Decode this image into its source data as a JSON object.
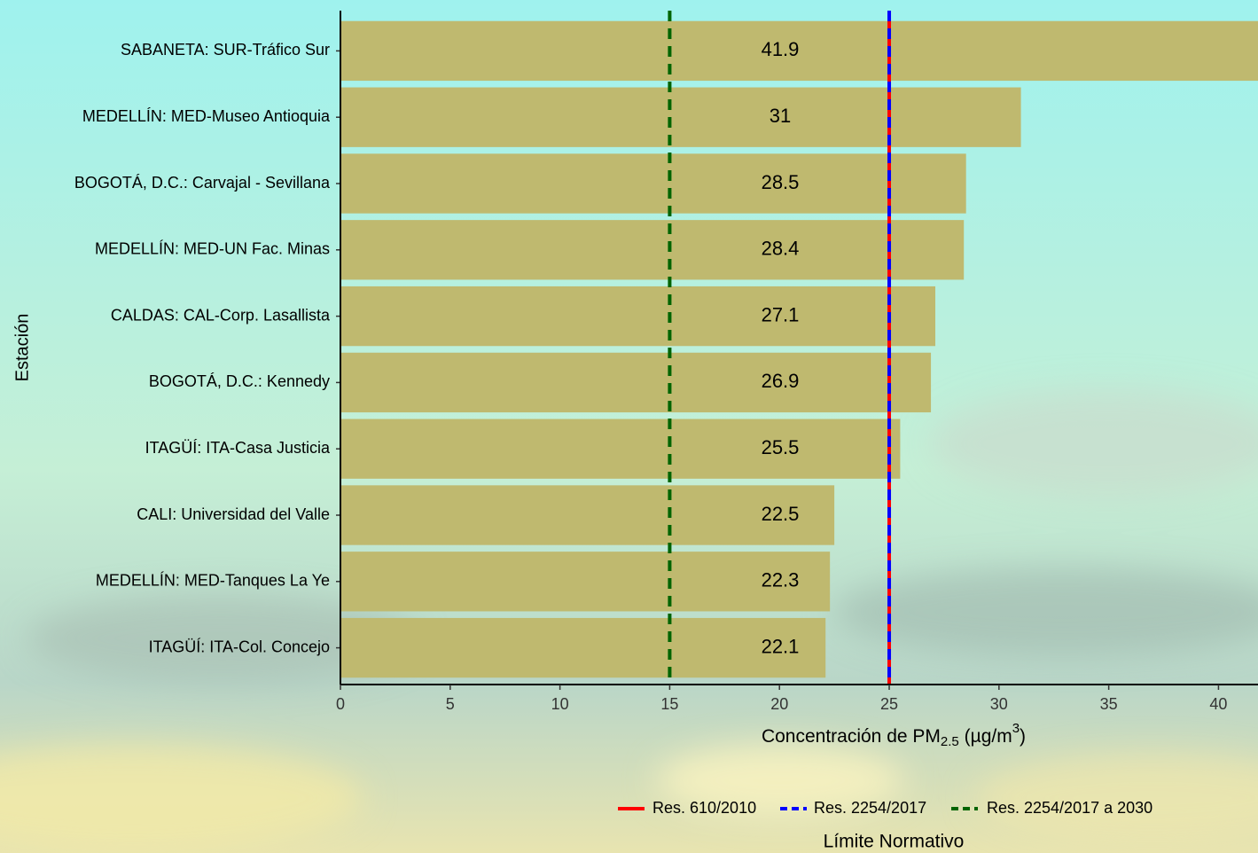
{
  "chart_data": {
    "type": "bar",
    "orientation": "horizontal",
    "categories": [
      "SABANETA: SUR-Tráfico Sur",
      "MEDELLÍN: MED-Museo Antioquia",
      "BOGOTÁ, D.C.: Carvajal - Sevillana",
      "MEDELLÍN: MED-UN Fac. Minas",
      "CALDAS: CAL-Corp. Lasallista",
      "BOGOTÁ, D.C.: Kennedy",
      "ITAGÜÍ: ITA-Casa Justicia",
      "CALI: Universidad del Valle",
      "MEDELLÍN: MED-Tanques La Ye",
      "ITAGÜÍ: ITA-Col. Concejo"
    ],
    "values": [
      41.9,
      31,
      28.5,
      28.4,
      27.1,
      26.9,
      25.5,
      22.5,
      22.3,
      22.1
    ],
    "color": "#bfb96f",
    "xlim": [
      0,
      41.8
    ],
    "xticks": [
      0,
      5,
      10,
      15,
      20,
      25,
      30,
      35,
      40
    ],
    "y_label": "Estación",
    "x_label": [
      "Concentración de PM",
      "2.5",
      " (µg/m",
      "3",
      ")"
    ],
    "reference_lines": [
      {
        "name": "Res. 610/2010",
        "value": 25,
        "color": "#ff0000",
        "dashed": false
      },
      {
        "name": "Res. 2254/2017",
        "value": 25,
        "color": "#0000ff",
        "dashed": true
      },
      {
        "name": "Res. 2254/2017 a 2030",
        "value": 15,
        "color": "#006400",
        "dashed": true
      }
    ],
    "legend_title": "Límite Normativo",
    "legend_position": "bottom"
  }
}
